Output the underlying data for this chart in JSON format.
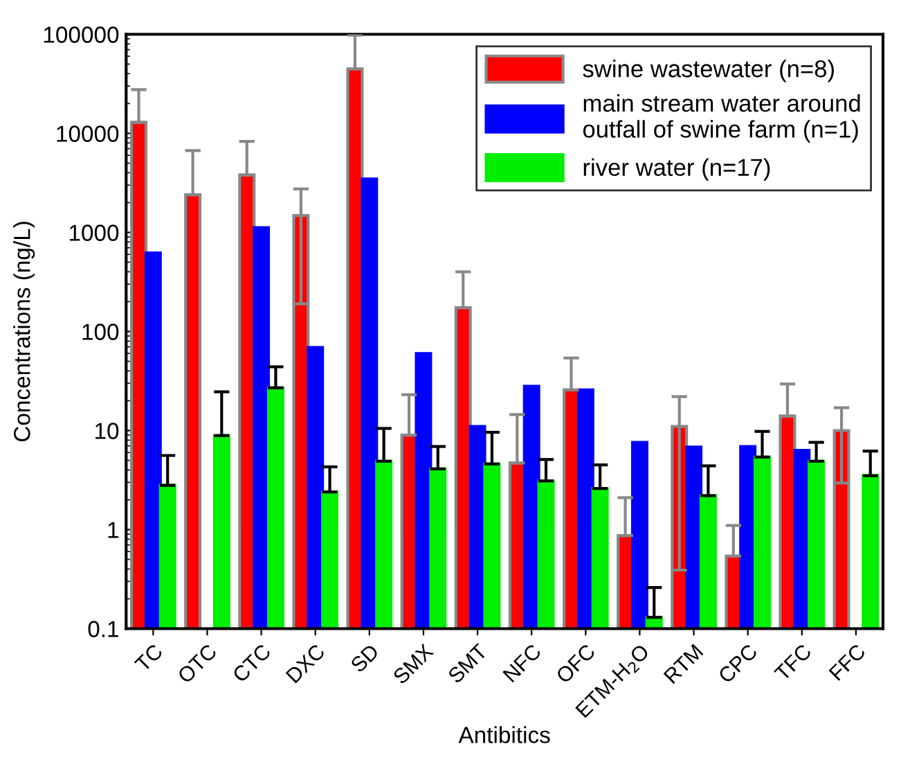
{
  "chart_data": {
    "type": "bar",
    "xlabel": "Antibitics",
    "ylabel": "Concentrations (ng/L)",
    "categories": [
      "TC",
      "OTC",
      "CTC",
      "DXC",
      "SD",
      "SMX",
      "SMT",
      "NFC",
      "OFC",
      "ETM-H$_{2}$O",
      "RTM",
      "CPC",
      "TFC",
      "FFC"
    ],
    "series": [
      {
        "name": "swine wastewater (n=8)",
        "color": "#ff0000",
        "values": [
          12900,
          2400,
          3800,
          1480,
          44700,
          9.0,
          174,
          4.7,
          25.7,
          0.87,
          11,
          0.54,
          14,
          10
        ],
        "errors": [
          [
            12900,
            27600
          ],
          [
            2400,
            6700
          ],
          [
            3800,
            8300
          ],
          [
            190,
            2750
          ],
          [
            44700,
            98000
          ],
          [
            9.0,
            23
          ],
          [
            174,
            400
          ],
          [
            4.7,
            14.5
          ],
          [
            25.7,
            54
          ],
          [
            0.87,
            2.1
          ],
          [
            0.39,
            22
          ],
          [
            0.54,
            1.1
          ],
          [
            14,
            29.5
          ],
          [
            2.95,
            17
          ]
        ]
      },
      {
        "name": "main stream water around\noutfall of swine farm (n=1)",
        "color": "#0000ff",
        "values": [
          620,
          null,
          1120,
          69,
          3470,
          60,
          11,
          28,
          25.7,
          7.6,
          6.8,
          6.9,
          6.3,
          null
        ]
      },
      {
        "name": "river water (n=17)",
        "color": "#00ee00",
        "values": [
          2.8,
          8.9,
          27,
          2.4,
          4.9,
          4.1,
          4.6,
          3.1,
          2.6,
          0.13,
          2.2,
          5.4,
          4.9,
          3.5
        ],
        "errors": [
          [
            2.8,
            5.6
          ],
          [
            8.9,
            24.6
          ],
          [
            27,
            44
          ],
          [
            2.4,
            4.3
          ],
          [
            4.9,
            10.5
          ],
          [
            4.1,
            6.9
          ],
          [
            4.6,
            9.6
          ],
          [
            3.1,
            5.1
          ],
          [
            2.6,
            4.5
          ],
          [
            0.13,
            0.26
          ],
          [
            2.2,
            4.4
          ],
          [
            5.4,
            9.8
          ],
          [
            4.9,
            7.6
          ],
          [
            3.5,
            6.2
          ]
        ]
      }
    ],
    "log": "y",
    "ylim": [
      0.1,
      100000
    ],
    "yticks": [
      0.1,
      1,
      10,
      100,
      1000,
      10000,
      100000
    ],
    "legend": "top right",
    "grid": false
  }
}
